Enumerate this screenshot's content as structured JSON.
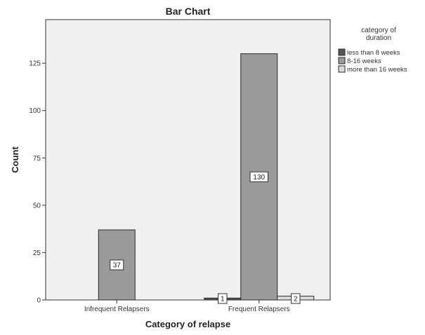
{
  "chart_data": {
    "type": "bar",
    "title": "Bar Chart",
    "xlabel": "Category of relapse",
    "ylabel": "Count",
    "categories": [
      "Infrequent Relapsers",
      "Frequent Relapsers"
    ],
    "series": [
      {
        "name": "less than 8 weeks",
        "values": [
          0,
          1
        ],
        "color": "#555555"
      },
      {
        "name": "8-16 weeks",
        "values": [
          37,
          130
        ],
        "color": "#9a9a9a"
      },
      {
        "name": "more than 16 weeks",
        "values": [
          0,
          2
        ],
        "color": "#dcdcdc"
      }
    ],
    "data_labels": [
      [
        null,
        "1"
      ],
      [
        "37",
        "130"
      ],
      [
        null,
        "2"
      ]
    ],
    "yticks": [
      0,
      25,
      50,
      75,
      100,
      125
    ],
    "ylim": [
      0,
      148
    ],
    "grid": false,
    "legend": {
      "title": "category of duration",
      "placement": "top-right"
    },
    "plot_background": "#f0f0f0"
  }
}
